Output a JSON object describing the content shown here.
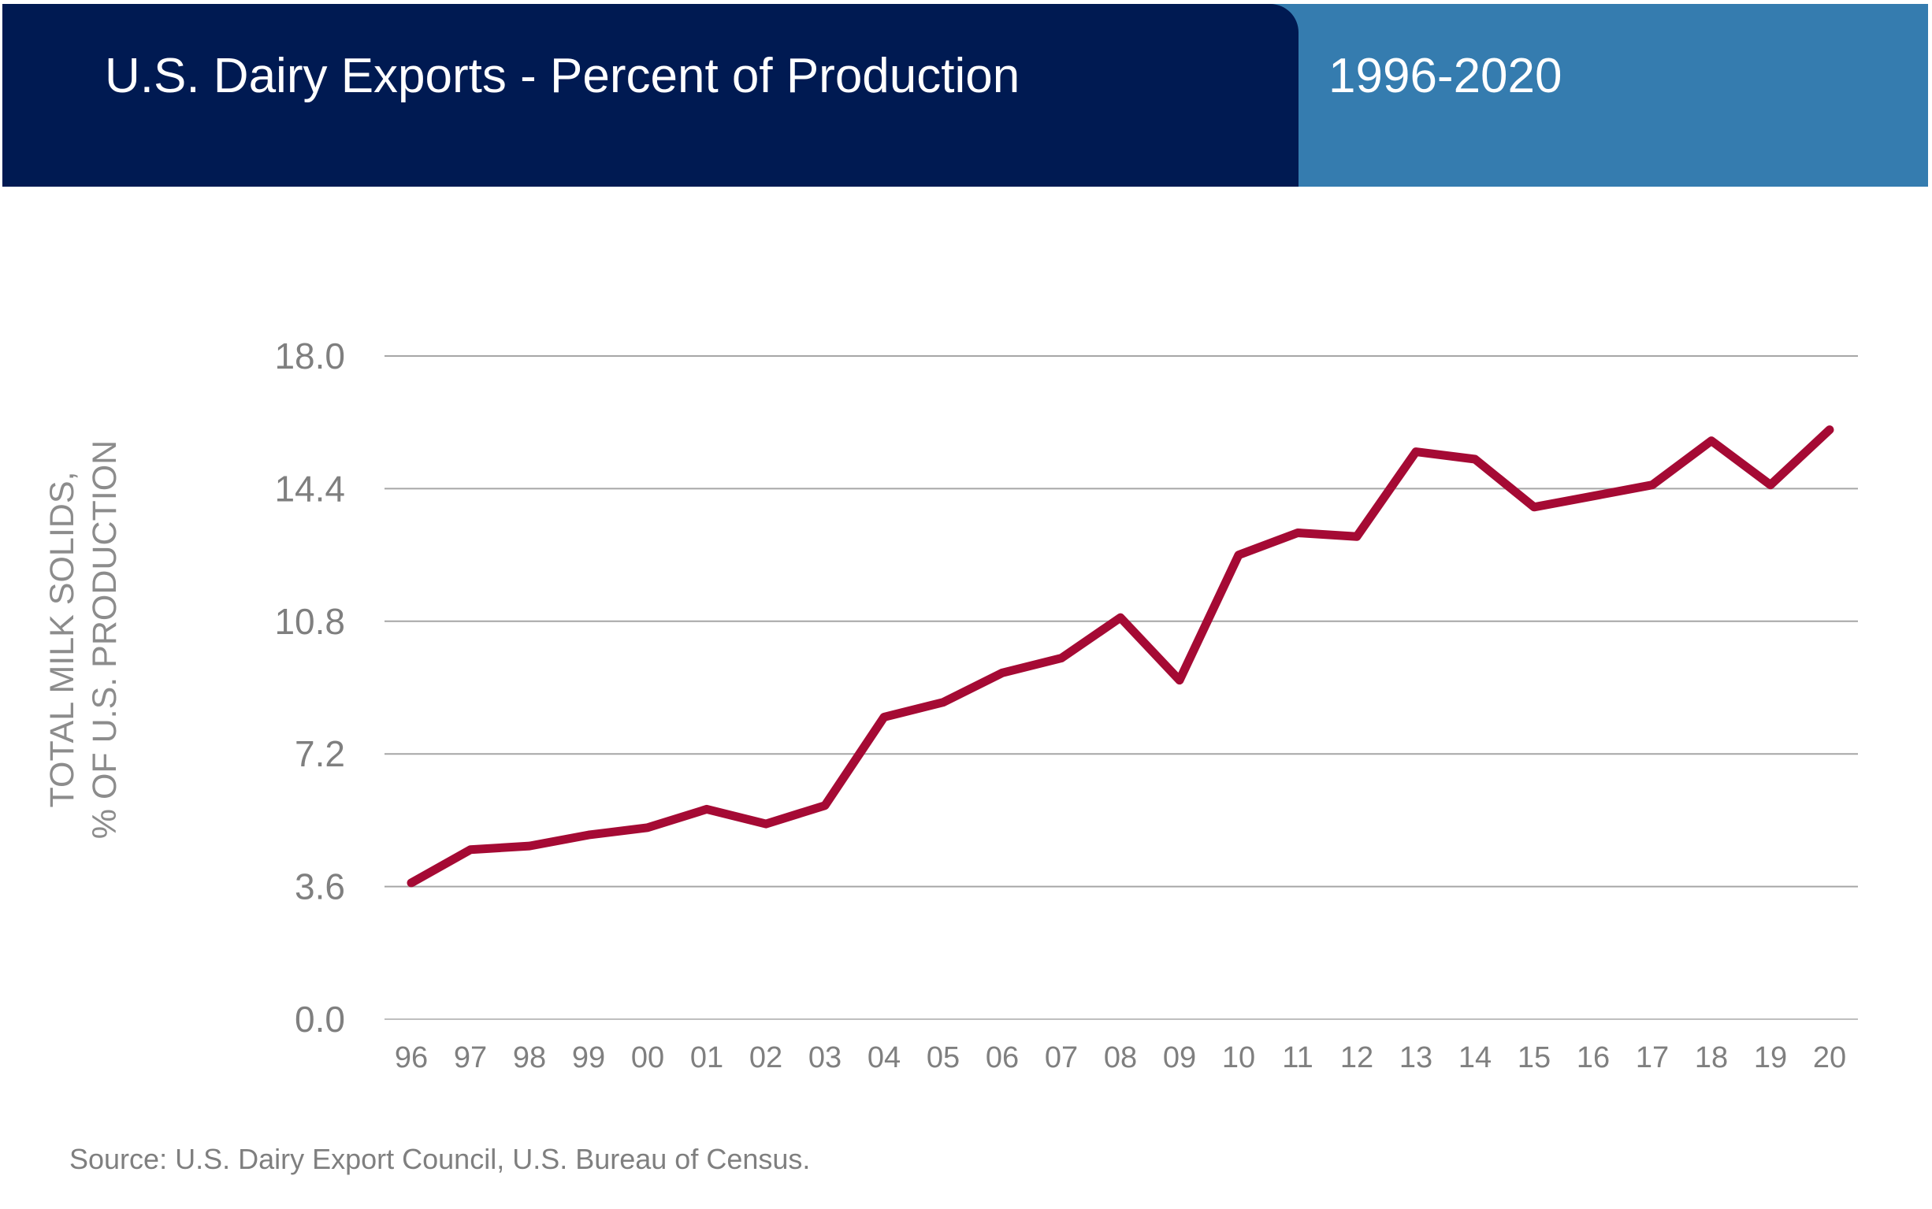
{
  "header": {
    "title": "U.S. Dairy Exports - Percent of Production",
    "years": "1996-2020",
    "left_color": "#001a52",
    "right_color": "#357caf"
  },
  "chart_data": {
    "type": "line",
    "title": "U.S. Dairy Exports - Percent of Production",
    "ylabel_line1": "TOTAL MILK SOLIDS,",
    "ylabel_line2": "% OF U.S. PRODUCTION",
    "xlabel": "",
    "ylim": [
      0,
      18
    ],
    "yticks": [
      "0.0",
      "3.6",
      "7.2",
      "10.8",
      "14.4",
      "18.0"
    ],
    "ytick_values": [
      0,
      3.6,
      7.2,
      10.8,
      14.4,
      18
    ],
    "grid": true,
    "categories": [
      "96",
      "97",
      "98",
      "99",
      "00",
      "01",
      "02",
      "03",
      "04",
      "05",
      "06",
      "07",
      "08",
      "09",
      "10",
      "11",
      "12",
      "13",
      "14",
      "15",
      "16",
      "17",
      "18",
      "19",
      "20"
    ],
    "series": [
      {
        "color": "#a50a34",
        "values": [
          3.7,
          4.6,
          4.7,
          5.0,
          5.2,
          5.7,
          5.3,
          5.8,
          8.2,
          8.6,
          9.4,
          9.8,
          10.9,
          9.2,
          12.6,
          13.2,
          13.1,
          15.4,
          15.2,
          13.9,
          14.2,
          14.5,
          15.7,
          14.5,
          16.0
        ]
      }
    ]
  },
  "source": "Source: U.S. Dairy Export Council, U.S. Bureau of Census."
}
